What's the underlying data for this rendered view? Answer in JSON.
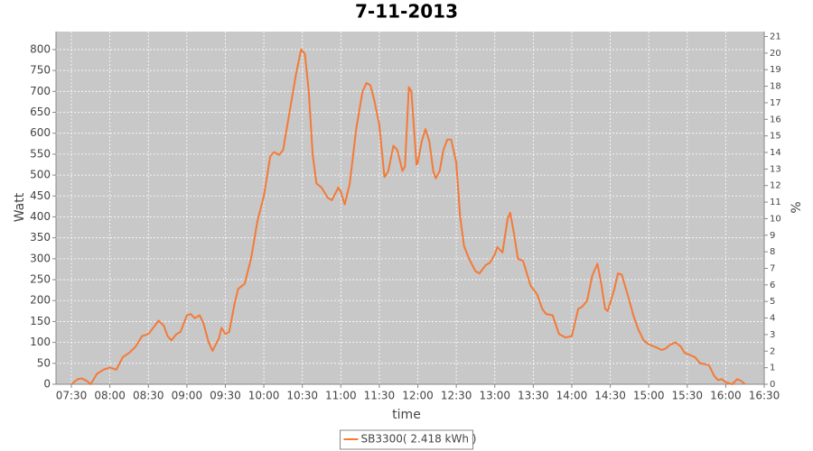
{
  "chart_data": {
    "type": "line",
    "title": "7-11-2013",
    "x_label": "time",
    "y_label": "Watt",
    "y2_label": "%",
    "x": [
      "07:30",
      "07:35",
      "07:38",
      "07:42",
      "07:45",
      "07:50",
      "07:55",
      "08:00",
      "08:05",
      "08:10",
      "08:15",
      "08:20",
      "08:25",
      "08:30",
      "08:35",
      "08:38",
      "08:42",
      "08:45",
      "08:48",
      "08:52",
      "08:55",
      "09:00",
      "09:03",
      "09:06",
      "09:10",
      "09:13",
      "09:17",
      "09:20",
      "09:25",
      "09:27",
      "09:30",
      "09:33",
      "09:37",
      "09:40",
      "09:45",
      "09:50",
      "09:55",
      "10:00",
      "10:05",
      "10:08",
      "10:12",
      "10:15",
      "10:20",
      "10:25",
      "10:29",
      "10:32",
      "10:35",
      "10:38",
      "10:41",
      "10:45",
      "10:50",
      "10:53",
      "10:58",
      "11:00",
      "11:03",
      "11:07",
      "11:12",
      "11:17",
      "11:20",
      "11:23",
      "11:26",
      "11:30",
      "11:34",
      "11:37",
      "11:41",
      "11:44",
      "11:48",
      "11:50",
      "11:53",
      "11:55",
      "11:59",
      "12:00",
      "12:03",
      "12:06",
      "12:09",
      "12:12",
      "12:14",
      "12:17",
      "12:20",
      "12:23",
      "12:26",
      "12:30",
      "12:33",
      "12:36",
      "12:40",
      "12:45",
      "12:48",
      "12:53",
      "12:56",
      "13:00",
      "13:02",
      "13:06",
      "13:10",
      "13:12",
      "13:15",
      "13:18",
      "13:22",
      "13:25",
      "13:28",
      "13:33",
      "13:37",
      "13:40",
      "13:45",
      "13:50",
      "13:55",
      "14:00",
      "14:05",
      "14:08",
      "14:12",
      "14:16",
      "14:20",
      "14:23",
      "14:26",
      "14:28",
      "14:33",
      "14:36",
      "14:39",
      "14:44",
      "14:48",
      "14:52",
      "14:56",
      "15:00",
      "15:06",
      "15:10",
      "15:13",
      "15:17",
      "15:21",
      "15:25",
      "15:28",
      "15:32",
      "15:36",
      "15:40",
      "15:44",
      "15:47",
      "15:51",
      "15:54",
      "15:57",
      "16:00",
      "16:05",
      "16:09",
      "16:12",
      "16:15"
    ],
    "series": [
      {
        "name": "SB3300( 2.418 kWh )",
        "color": "#f47a38",
        "values": [
          0,
          12,
          14,
          8,
          0,
          25,
          35,
          40,
          35,
          65,
          75,
          90,
          115,
          120,
          140,
          152,
          140,
          115,
          105,
          120,
          125,
          165,
          168,
          158,
          165,
          145,
          100,
          80,
          110,
          135,
          120,
          125,
          190,
          228,
          240,
          300,
          390,
          450,
          545,
          555,
          548,
          560,
          650,
          740,
          800,
          790,
          700,
          550,
          480,
          470,
          445,
          440,
          470,
          460,
          430,
          480,
          610,
          700,
          720,
          715,
          680,
          620,
          495,
          510,
          570,
          560,
          510,
          520,
          710,
          700,
          525,
          530,
          580,
          610,
          580,
          510,
          492,
          510,
          560,
          585,
          585,
          530,
          400,
          330,
          300,
          270,
          265,
          285,
          290,
          310,
          328,
          315,
          395,
          410,
          360,
          300,
          295,
          265,
          235,
          215,
          180,
          168,
          165,
          120,
          112,
          115,
          180,
          185,
          200,
          260,
          288,
          240,
          180,
          175,
          225,
          265,
          262,
          210,
          165,
          130,
          105,
          95,
          88,
          82,
          85,
          95,
          100,
          90,
          75,
          70,
          65,
          50,
          48,
          45,
          20,
          10,
          12,
          5,
          0,
          12,
          8,
          0
        ]
      }
    ],
    "xlim": [
      "07:18",
      "16:30"
    ],
    "xticks": [
      "07:30",
      "08:00",
      "08:30",
      "09:00",
      "09:30",
      "10:00",
      "10:30",
      "11:00",
      "11:30",
      "12:00",
      "12:30",
      "13:00",
      "13:30",
      "14:00",
      "14:30",
      "15:00",
      "15:30",
      "16:00",
      "16:30"
    ],
    "ylim": [
      0,
      843
    ],
    "yticks": [
      0,
      50,
      100,
      150,
      200,
      250,
      300,
      350,
      400,
      450,
      500,
      550,
      600,
      650,
      700,
      750,
      800
    ],
    "y2lim": [
      0,
      21.3
    ],
    "y2ticks": [
      0,
      1,
      2,
      3,
      4,
      5,
      6,
      7,
      8,
      9,
      10,
      11,
      12,
      13,
      14,
      15,
      16,
      17,
      18,
      19,
      20,
      21
    ],
    "grid": true,
    "legend": "bottom"
  }
}
